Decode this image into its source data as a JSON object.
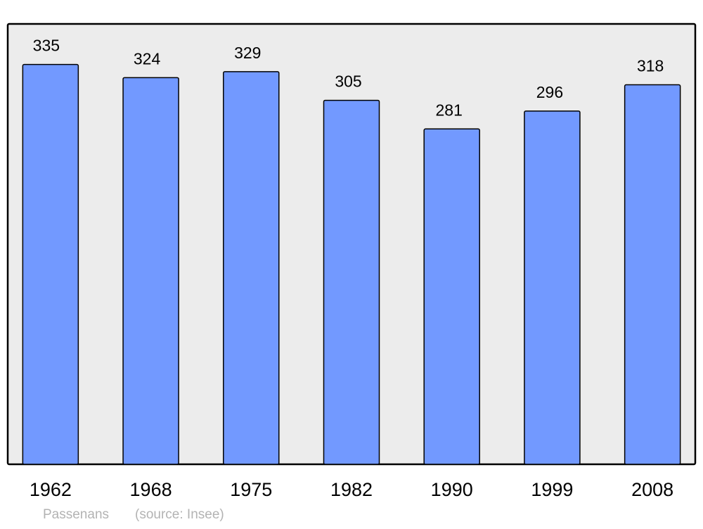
{
  "chart_data": {
    "type": "bar",
    "title": "",
    "xlabel": "",
    "ylabel": "",
    "categories": [
      "1962",
      "1968",
      "1975",
      "1982",
      "1990",
      "1999",
      "2008"
    ],
    "values": [
      335,
      324,
      329,
      305,
      281,
      296,
      318
    ],
    "ylim": [
      0,
      369
    ],
    "grid": false,
    "data_labels": true,
    "colors": {
      "bar": "#7299ff",
      "plot_background": "#ececec",
      "frame": "#000000"
    }
  },
  "footer": {
    "place": "Passenans",
    "source": "(source: Insee)"
  }
}
